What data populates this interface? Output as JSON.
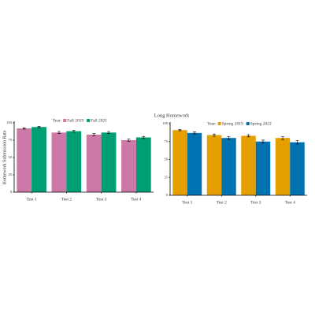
{
  "chart_data": [
    {
      "type": "bar",
      "y_label": "Homework Submission Rate",
      "legend_title": "Year:",
      "categories": [
        "Test 1",
        "Test 2",
        "Test 3",
        "Test 4"
      ],
      "series": [
        {
          "name": "Fall 2019",
          "color": "#cc79a7",
          "values": [
            92,
            86,
            83,
            75
          ],
          "errors": [
            1,
            1.5,
            1.5,
            1.5
          ]
        },
        {
          "name": "Fall 2021",
          "color": "#009e73",
          "values": [
            94,
            88,
            86,
            79
          ],
          "errors": [
            1,
            1.5,
            1.5,
            1.5
          ]
        }
      ],
      "ylim": [
        0,
        100
      ],
      "yticks": [
        0,
        25,
        50,
        75,
        100
      ]
    },
    {
      "type": "bar",
      "title": "Long Homework",
      "legend_title": "Year:",
      "categories": [
        "Test 1",
        "Test 2",
        "Test 3",
        "Test 4"
      ],
      "series": [
        {
          "name": "Spring 2019",
          "color": "#e69f00",
          "values": [
            91,
            84,
            83,
            80
          ],
          "errors": [
            1,
            1.5,
            1.5,
            2
          ]
        },
        {
          "name": "Spring 2022",
          "color": "#0072b2",
          "values": [
            87,
            80,
            75,
            74
          ],
          "errors": [
            1.5,
            2,
            2,
            2.5
          ]
        }
      ],
      "ylim": [
        0,
        100
      ],
      "yticks": [
        0,
        25,
        50,
        75,
        100
      ]
    }
  ]
}
